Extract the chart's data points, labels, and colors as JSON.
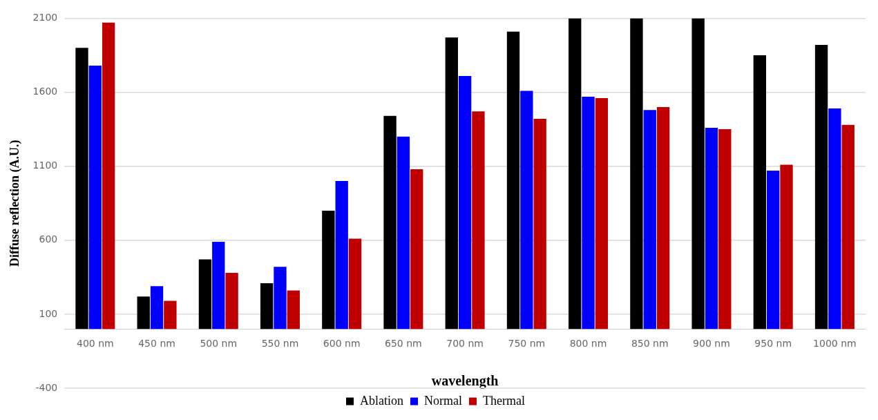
{
  "chart_data": {
    "type": "bar",
    "xlabel": "wavelength",
    "ylabel": "Diffuse reflection (A.U.)",
    "categories": [
      "400 nm",
      "450 nm",
      "500 nm",
      "550 nm",
      "600 nm",
      "650 nm",
      "700 nm",
      "750 nm",
      "800 nm",
      "850 nm",
      "900 nm",
      "950 nm",
      "1000 nm"
    ],
    "series": [
      {
        "name": "Ablation",
        "color": "#000000",
        "values": [
          1900,
          220,
          470,
          310,
          800,
          1440,
          1970,
          2010,
          2100,
          2100,
          2100,
          1850,
          1920
        ]
      },
      {
        "name": "Normal",
        "color": "#0000ff",
        "values": [
          1780,
          290,
          590,
          420,
          1000,
          1300,
          1710,
          1610,
          1570,
          1480,
          1360,
          1070,
          1490
        ]
      },
      {
        "name": "Thermal",
        "color": "#c00000",
        "values": [
          2070,
          190,
          380,
          260,
          610,
          1080,
          1470,
          1420,
          1560,
          1500,
          1350,
          1110,
          1380
        ]
      }
    ],
    "ylim": [
      -400,
      2100
    ],
    "yticks": [
      -400,
      100,
      600,
      1100,
      1600,
      2100
    ],
    "grid": "y",
    "legend": "bottom"
  }
}
